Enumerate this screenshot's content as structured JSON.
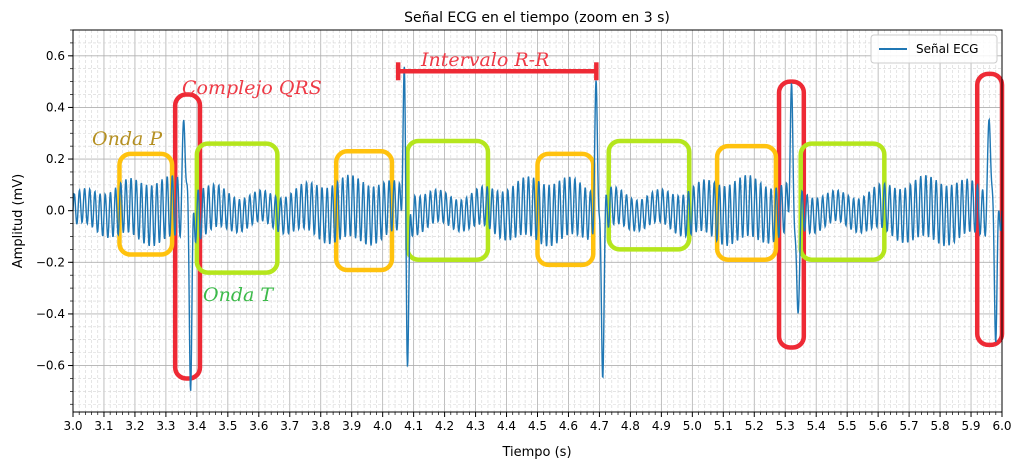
{
  "chart_data": {
    "type": "line",
    "title": "Señal ECG en el tiempo (zoom en 3 s)",
    "xlabel": "Tiempo (s)",
    "ylabel": "Amplitud (mV)",
    "xlim": [
      3.0,
      6.0
    ],
    "ylim": [
      -0.78,
      0.7
    ],
    "x_ticks": [
      3.0,
      3.1,
      3.2,
      3.3,
      3.4,
      3.5,
      3.6,
      3.7,
      3.8,
      3.9,
      4.0,
      4.1,
      4.2,
      4.3,
      4.4,
      4.5,
      4.6,
      4.7,
      4.8,
      4.9,
      5.0,
      5.1,
      5.2,
      5.3,
      5.4,
      5.5,
      5.6,
      5.7,
      5.8,
      5.9,
      6.0
    ],
    "x_tick_labels": [
      "3.0",
      "3.1",
      "3.2",
      "3.3",
      "3.4",
      "3.5",
      "3.6",
      "3.7",
      "3.8",
      "3.9",
      "4.0",
      "4.1",
      "4.2",
      "4.3",
      "4.4",
      "4.5",
      "4.6",
      "4.7",
      "4.8",
      "4.9",
      "5.0",
      "5.1",
      "5.2",
      "5.3",
      "5.4",
      "5.5",
      "5.6",
      "5.7",
      "5.8",
      "5.9",
      "6.0"
    ],
    "y_ticks": [
      -0.6,
      -0.4,
      -0.2,
      0.0,
      0.2,
      0.4,
      0.6
    ],
    "y_tick_labels": [
      "−0.6",
      "−0.4",
      "−0.2",
      "0.0",
      "0.2",
      "0.4",
      "0.6"
    ],
    "grid": true,
    "legend_position": "top-right",
    "series": [
      {
        "name": "Señal ECG",
        "color": "#1f77b4",
        "r_peaks": [
          3.36,
          4.07,
          4.69,
          5.32,
          5.96
        ],
        "r_peak_max": [
          0.43,
          0.58,
          0.52,
          0.45,
          0.46
        ],
        "s_troughs": [
          3.38,
          4.08,
          4.71,
          5.34,
          5.98
        ],
        "s_trough_min": [
          -0.63,
          -0.61,
          -0.64,
          -0.49,
          -0.47
        ],
        "baseline_oscillation_amplitude": 0.12,
        "baseline_oscillation_freq_hz": 60
      }
    ],
    "annotations": [
      {
        "label": "Complejo QRS",
        "color": "#ee2a35",
        "x_range": [
          3.33,
          3.41
        ],
        "y_range": [
          -0.65,
          0.45
        ]
      },
      {
        "label": "",
        "color": "#ee2a35",
        "x_range": [
          5.28,
          5.36
        ],
        "y_range": [
          -0.53,
          0.5
        ]
      },
      {
        "label": "",
        "color": "#ee2a35",
        "x_range": [
          5.92,
          6.0
        ],
        "y_range": [
          -0.52,
          0.53
        ]
      },
      {
        "label": "Onda P",
        "color": "#ffc20e",
        "x_range": [
          3.15,
          3.32
        ],
        "y_range": [
          -0.17,
          0.22
        ]
      },
      {
        "label": "",
        "color": "#ffc20e",
        "x_range": [
          3.85,
          4.03
        ],
        "y_range": [
          -0.23,
          0.23
        ]
      },
      {
        "label": "",
        "color": "#ffc20e",
        "x_range": [
          4.5,
          4.68
        ],
        "y_range": [
          -0.21,
          0.22
        ]
      },
      {
        "label": "",
        "color": "#ffc20e",
        "x_range": [
          5.08,
          5.27
        ],
        "y_range": [
          -0.19,
          0.25
        ]
      },
      {
        "label": "Onda T",
        "color": "#b5e61d",
        "x_range": [
          3.4,
          3.66
        ],
        "y_range": [
          -0.24,
          0.26
        ]
      },
      {
        "label": "",
        "color": "#b5e61d",
        "x_range": [
          4.08,
          4.34
        ],
        "y_range": [
          -0.19,
          0.27
        ]
      },
      {
        "label": "",
        "color": "#b5e61d",
        "x_range": [
          4.73,
          4.99
        ],
        "y_range": [
          -0.15,
          0.27
        ]
      },
      {
        "label": "",
        "color": "#b5e61d",
        "x_range": [
          5.35,
          5.62
        ],
        "y_range": [
          -0.19,
          0.26
        ]
      },
      {
        "label": "Intervalo R-R",
        "color": "#ee2a35",
        "x_range": [
          4.05,
          4.69
        ],
        "y": 0.54
      }
    ]
  }
}
